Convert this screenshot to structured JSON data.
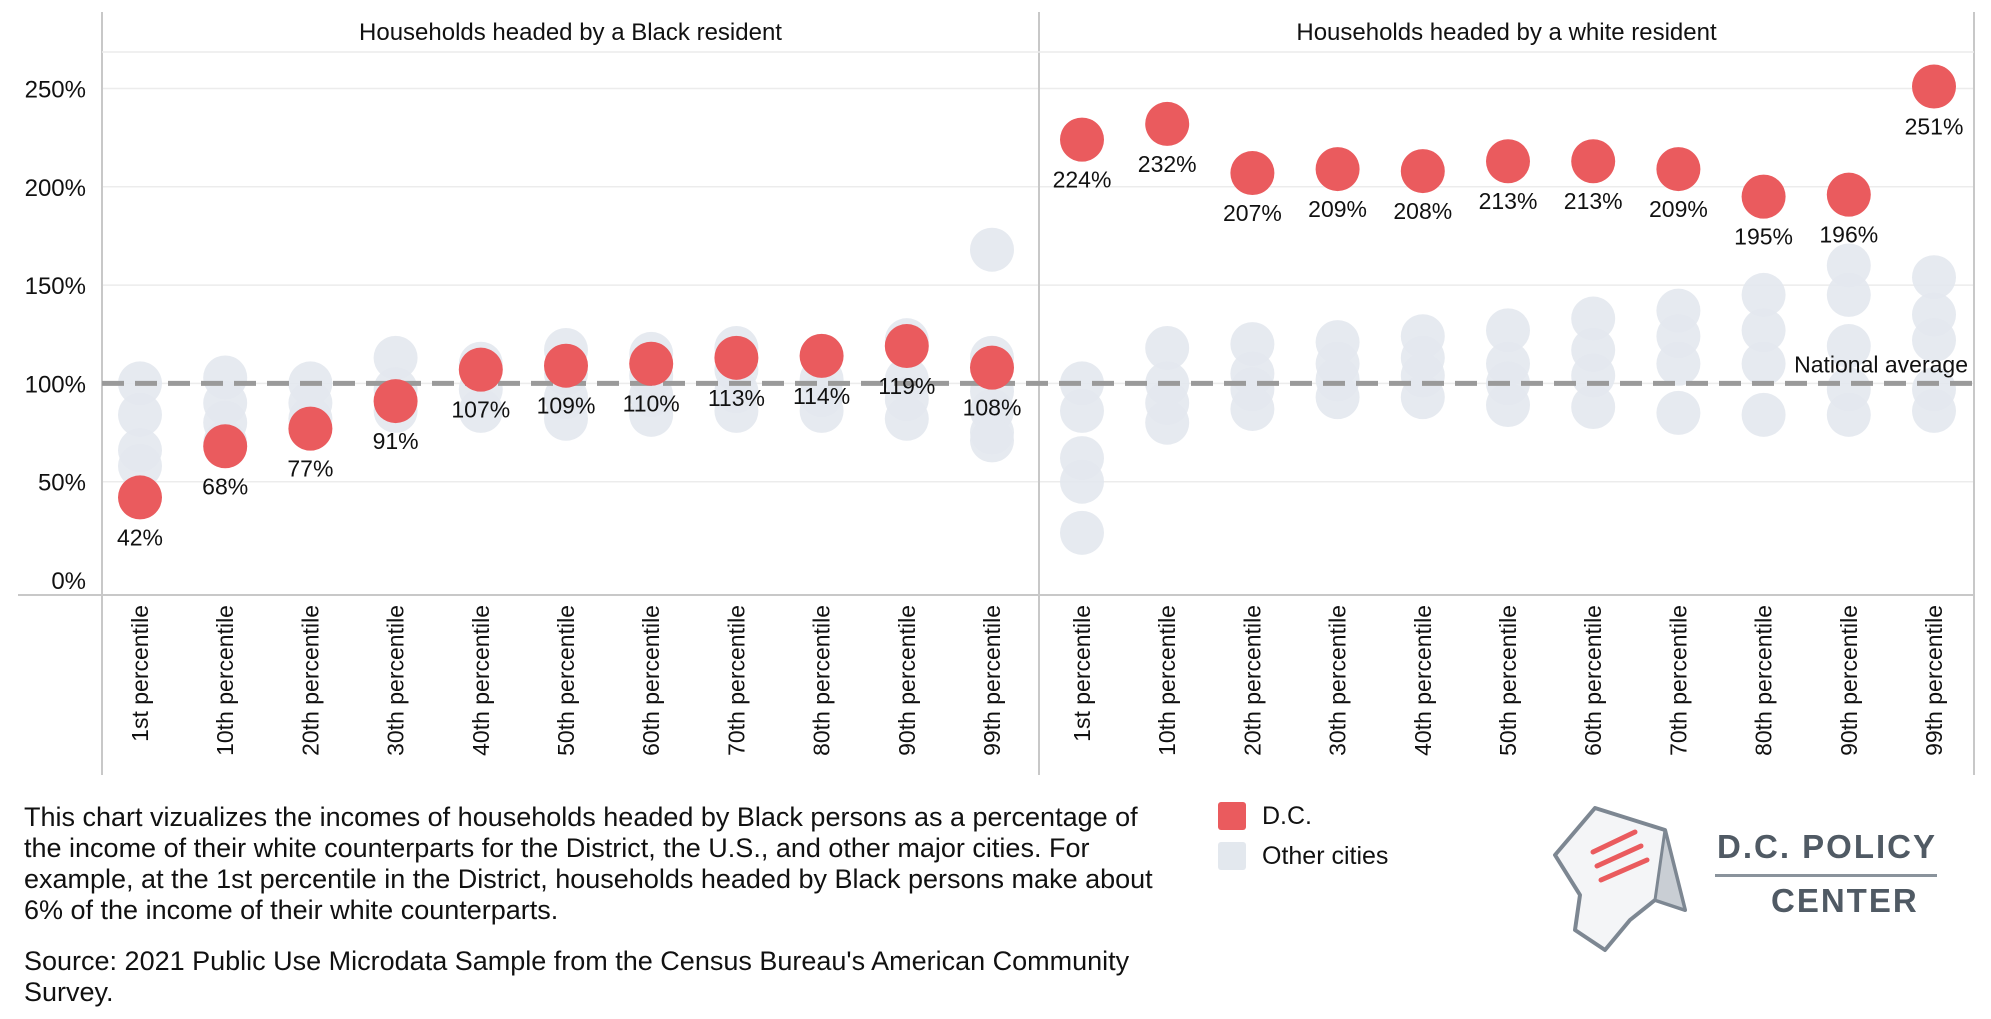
{
  "colors": {
    "dc": "#ea5b5e",
    "other": "#e3e8ee",
    "average_line": "#9a9a9a",
    "grid": "#ececec",
    "axis": "#c8c8c8"
  },
  "chart_data": {
    "type": "scatter",
    "panels": [
      "Households headed by a Black resident",
      "Households headed by a white resident"
    ],
    "categories": [
      "1st percentile",
      "10th percentile",
      "20th percentile",
      "30th percentile",
      "40th percentile",
      "50th percentile",
      "60th percentile",
      "70th percentile",
      "80th percentile",
      "90th percentile",
      "99th percentile"
    ],
    "y_ticks": [
      "0%",
      "50%",
      "100%",
      "150%",
      "200%",
      "250%"
    ],
    "ylim": [
      0,
      275
    ],
    "reference_line": {
      "value": 100,
      "label": "National average"
    },
    "series": [
      {
        "name": "D.C.",
        "black": [
          42,
          68,
          77,
          91,
          107,
          109,
          110,
          113,
          114,
          119,
          108
        ],
        "white": [
          224,
          232,
          207,
          209,
          208,
          213,
          213,
          209,
          195,
          196,
          251
        ]
      },
      {
        "name": "Other cities",
        "black": [
          [
            100,
            84,
            66,
            58
          ],
          [
            103,
            90,
            80,
            70
          ],
          [
            100,
            90,
            82
          ],
          [
            113,
            97,
            86
          ],
          [
            110,
            97,
            86
          ],
          [
            117,
            105,
            93,
            82
          ],
          [
            115,
            104,
            94,
            84
          ],
          [
            118,
            107,
            96,
            86
          ],
          [
            114,
            102,
            94,
            86
          ],
          [
            122,
            102,
            92,
            82
          ],
          [
            168,
            113,
            96,
            86,
            75,
            71
          ]
        ],
        "white": [
          [
            100,
            86,
            62,
            50,
            24
          ],
          [
            118,
            100,
            90,
            80
          ],
          [
            120,
            105,
            97,
            87
          ],
          [
            121,
            110,
            102,
            93
          ],
          [
            124,
            113,
            104,
            93
          ],
          [
            127,
            110,
            100,
            89
          ],
          [
            133,
            117,
            104,
            88
          ],
          [
            137,
            124,
            110,
            85
          ],
          [
            145,
            127,
            110,
            84
          ],
          [
            160,
            145,
            119,
            97,
            84
          ],
          [
            154,
            135,
            122,
            97,
            86
          ]
        ]
      }
    ]
  },
  "legend": [
    {
      "label": "D.C.",
      "color": "#ea5b5e"
    },
    {
      "label": "Other cities",
      "color": "#e3e8ee"
    }
  ],
  "footer": {
    "description": "This chart vizualizes the incomes of households headed by Black persons as a percentage of the income of their white counterparts for the District, the U.S., and other major cities. For example, at the 1st percentile in the District, households headed by Black persons make about 6% of the income of their white counterparts.",
    "source": "Source: 2021 Public Use Microdata Sample from the Census Bureau's American Community Survey."
  },
  "logo": {
    "line1": "D.C. POLICY",
    "line2": "CENTER"
  }
}
